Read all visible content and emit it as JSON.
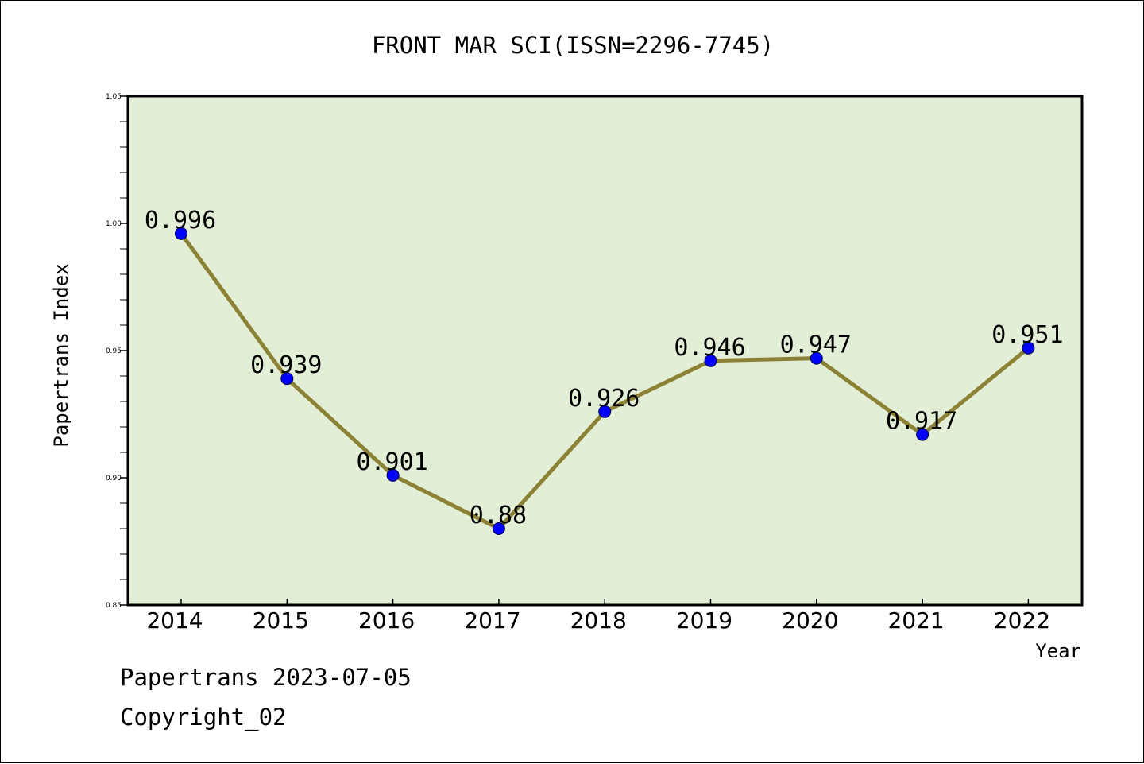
{
  "chart_data": {
    "type": "line",
    "title": "FRONT MAR SCI(ISSN=2296-7745)",
    "xlabel": "Year",
    "ylabel": "Papertrans Index",
    "x": [
      "2014",
      "2015",
      "2016",
      "2017",
      "2018",
      "2019",
      "2020",
      "2021",
      "2022"
    ],
    "series": [
      {
        "values": [
          0.996,
          0.939,
          0.901,
          0.88,
          0.926,
          0.946,
          0.947,
          0.917,
          0.951
        ],
        "data_labels": [
          "0.996",
          "0.939",
          "0.901",
          "0.88",
          "0.926",
          "0.946",
          "0.947",
          "0.917",
          "0.951"
        ]
      }
    ],
    "ylim": [
      0.85,
      1.05
    ],
    "yticks": [
      0.85,
      0.9,
      0.95,
      1.0,
      1.05
    ],
    "ytick_labels": [
      "0.85",
      "0.90",
      "0.95",
      "1.00",
      "1.05"
    ],
    "grid": false,
    "colors": {
      "plot_background": "#e2efd6",
      "line": "#8b8236",
      "marker": "#0000ff"
    }
  },
  "footer": {
    "line1": "Papertrans 2023-07-05",
    "line2": "Copyright_02"
  }
}
